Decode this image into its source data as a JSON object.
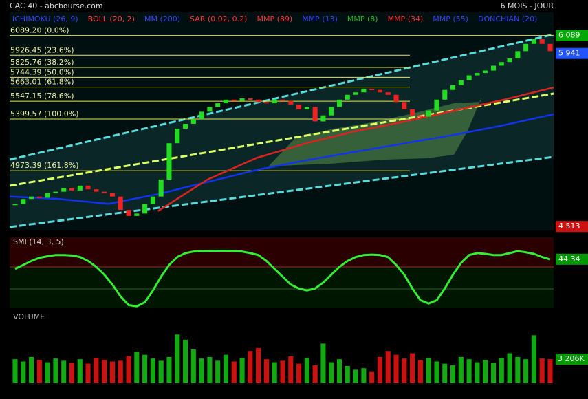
{
  "header": {
    "title": "CAC 40 - abcbourse.com",
    "period": "6 MOIS - JOUR"
  },
  "legend": [
    {
      "name": "ICHIMOKU (26, 9)",
      "color": "#3344ff"
    },
    {
      "name": "BOLL (20, 2)",
      "color": "#ff4444"
    },
    {
      "name": "MM (200)",
      "color": "#3344ff"
    },
    {
      "name": "SAR (0.02, 0.2)",
      "color": "#ff3333"
    },
    {
      "name": "MMP (89)",
      "color": "#ff3333"
    },
    {
      "name": "MMP (13)",
      "color": "#3344ff"
    },
    {
      "name": "MMP (8)",
      "color": "#22bb22"
    },
    {
      "name": "MMP (34)",
      "color": "#ff3333"
    },
    {
      "name": "MMP (55)",
      "color": "#3344ff"
    },
    {
      "name": "DONCHIAN (20)",
      "color": "#3344ff"
    }
  ],
  "chart_data": [
    {
      "type": "candle",
      "ylim": [
        4480,
        6280
      ],
      "up_color": "#22dd22",
      "down_color": "#ee2222",
      "values": [
        4700,
        4740,
        4760,
        4750,
        4790,
        4800,
        4830,
        4810,
        4850,
        4820,
        4800,
        4790,
        4760,
        4650,
        4600,
        4620,
        4700,
        4760,
        4900,
        5200,
        5320,
        5360,
        5400,
        5460,
        5500,
        5530,
        5560,
        5550,
        5570,
        5560,
        5540,
        5530,
        5560,
        5550,
        5520,
        5480,
        5500,
        5380,
        5430,
        5500,
        5560,
        5600,
        5620,
        5650,
        5640,
        5620,
        5600,
        5540,
        5480,
        5430,
        5420,
        5470,
        5560,
        5640,
        5680,
        5720,
        5760,
        5780,
        5800,
        5840,
        5870,
        5900,
        5960,
        6020,
        6060,
        6020,
        5960
      ],
      "series": [
        {
          "name": "MM (200)",
          "color": "#1133ee",
          "values": [
            4760,
            4740,
            4700,
            4780,
            4880,
            4980,
            5060,
            5130,
            5200,
            5270,
            5350,
            5440
          ]
        },
        {
          "name": "MMP (89)",
          "color": "#dd2222",
          "values": [
            null,
            null,
            null,
            4640,
            4900,
            5080,
            5200,
            5300,
            5380,
            5470,
            5560,
            5660
          ]
        }
      ],
      "fib_levels": [
        {
          "value": 6089.2,
          "label": "6089.20  (0.0%)"
        },
        {
          "value": 5926.45,
          "label": "5926.45  (23.6%)"
        },
        {
          "value": 5825.76,
          "label": "5825.76  (38.2%)"
        },
        {
          "value": 5744.39,
          "label": "5744.39  (50.0%)"
        },
        {
          "value": 5663.01,
          "label": "5663.01  (61.8%)"
        },
        {
          "value": 5547.15,
          "label": "5547.15  (78.6%)"
        },
        {
          "value": 5399.57,
          "label": "5399.57  (100.0%)"
        },
        {
          "value": 4973.39,
          "label": "4973.39  (161.8%)"
        }
      ],
      "right_labels": [
        {
          "value": 6089,
          "label": "6 089",
          "color": "#00aa00"
        },
        {
          "value": 5941,
          "label": "5 941",
          "color": "#2255ff"
        },
        {
          "value": 4513,
          "label": "4 513",
          "color": "#cc1111"
        }
      ]
    },
    {
      "type": "line",
      "title": "SMI (14, 3, 5)",
      "ylim": [
        -80,
        100
      ],
      "color": "#33ee33",
      "values": [
        20,
        30,
        40,
        48,
        52,
        55,
        55,
        54,
        50,
        40,
        25,
        5,
        -20,
        -50,
        -72,
        -75,
        -65,
        -35,
        0,
        30,
        50,
        60,
        64,
        65,
        65,
        66,
        66,
        65,
        64,
        60,
        55,
        40,
        20,
        0,
        -20,
        -30,
        -35,
        -30,
        -15,
        5,
        25,
        40,
        50,
        55,
        56,
        55,
        50,
        30,
        5,
        -30,
        -60,
        -68,
        -60,
        -30,
        5,
        35,
        55,
        60,
        58,
        55,
        55,
        60,
        65,
        62,
        58,
        50,
        44
      ],
      "last_label": {
        "value": 44.34,
        "label": "44.34"
      }
    },
    {
      "type": "volume",
      "title": "VOLUME",
      "ylim": [
        0,
        8000
      ],
      "values": [
        3200,
        2900,
        3500,
        3100,
        2800,
        3300,
        3000,
        2700,
        3200,
        2600,
        3400,
        3100,
        2900,
        3000,
        3600,
        4200,
        3800,
        3300,
        3000,
        3500,
        6500,
        5800,
        4500,
        3300,
        3500,
        3000,
        3800,
        2900,
        3400,
        4300,
        4700,
        3200,
        2800,
        3000,
        3600,
        2600,
        3400,
        2400,
        5300,
        2800,
        3200,
        2300,
        1800,
        2000,
        1500,
        3500,
        4300,
        3800,
        3300,
        4000,
        3100,
        3400,
        2900,
        2600,
        2400,
        3500,
        3200,
        2800,
        3100,
        2700,
        3400,
        4000,
        3500,
        3200,
        6400,
        3300,
        3206
      ],
      "last_label": {
        "value": 3206,
        "label": "3 206K"
      }
    }
  ]
}
